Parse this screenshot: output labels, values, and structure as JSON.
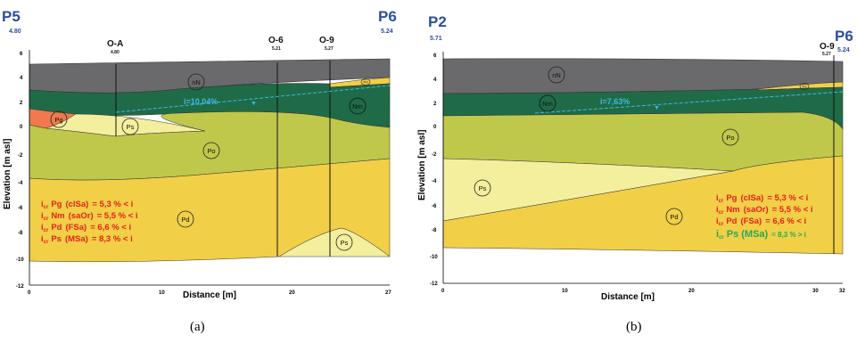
{
  "panel_a": {
    "left_point": {
      "name": "P5",
      "elev": "4.80"
    },
    "right_point": {
      "name": "P6",
      "elev": "5.24"
    },
    "wells": [
      {
        "name": "O-A",
        "elev": "4.80"
      },
      {
        "name": "O-6",
        "elev": "5.21"
      },
      {
        "name": "O-9",
        "elev": "5.27"
      }
    ],
    "layers": [
      "nN",
      "Pd",
      "Nm",
      "Pg",
      "Ps",
      "Po",
      "Pd",
      "Ps"
    ],
    "gradient": "i=10,04%",
    "criteria": [
      {
        "name": "Pg",
        "soil": "(clSa)",
        "value": "= 5,3 % < i"
      },
      {
        "name": "Nm",
        "soil": "(saOr)",
        "value": "= 5,5 % < i"
      },
      {
        "name": "Pd",
        "soil": "(FSa)",
        "value": "= 6,6 % < i"
      },
      {
        "name": "Ps",
        "soil": "(MSa)",
        "value": "= 8,3 % < i"
      }
    ],
    "y_ticks": [
      "6",
      "4",
      "2",
      "0",
      "-2",
      "-4",
      "-6",
      "-8",
      "-10",
      "-12"
    ],
    "x_ticks": [
      "0",
      "10",
      "20",
      "27"
    ],
    "xlabel": "Distance [m]",
    "ylabel": "Elevation [m asl]",
    "caption": "(a)"
  },
  "panel_b": {
    "left_point": {
      "name": "P2",
      "elev": "5.71"
    },
    "right_point": {
      "name": "P6",
      "elev": "5.24"
    },
    "wells": [
      {
        "name": "O-9",
        "elev": "5.27"
      }
    ],
    "layers": [
      "nN",
      "Pd",
      "Nm",
      "Po",
      "Ps",
      "Pd"
    ],
    "gradient": "i=7,63%",
    "criteria": [
      {
        "name": "Pg",
        "soil": "(clSa)",
        "value": "= 5,3 % < i"
      },
      {
        "name": "Nm",
        "soil": "(saOr)",
        "value": "= 5,5 % < i"
      },
      {
        "name": "Pd",
        "soil": "(FSa)",
        "value": "= 6,6 % < i"
      },
      {
        "name": "Ps (MSa)",
        "soil": "",
        "value": "= 8,3 % > i"
      }
    ],
    "y_ticks": [
      "6",
      "4",
      "2",
      "0",
      "-2",
      "-4",
      "-6",
      "-8",
      "-10",
      "-12"
    ],
    "x_ticks": [
      "0",
      "10",
      "20",
      "30",
      "32"
    ],
    "xlabel": "Distance [m]",
    "ylabel": "Elevation [m asl]",
    "caption": "(b)"
  },
  "crit_prefix": "i",
  "crit_sub": "cr",
  "colors": {
    "nN": "#6a6a6c",
    "Nm": "#1f6b47",
    "Po": "#bfc84a",
    "Pd": "#f1cf47",
    "Ps": "#f3ef9d",
    "Pg": "#f07a4e",
    "criteria_text": "#e8201d",
    "criteria_pass": "#27a85a",
    "gradient_line": "#3fb8e0",
    "title_blue": "#2b4fa0"
  }
}
